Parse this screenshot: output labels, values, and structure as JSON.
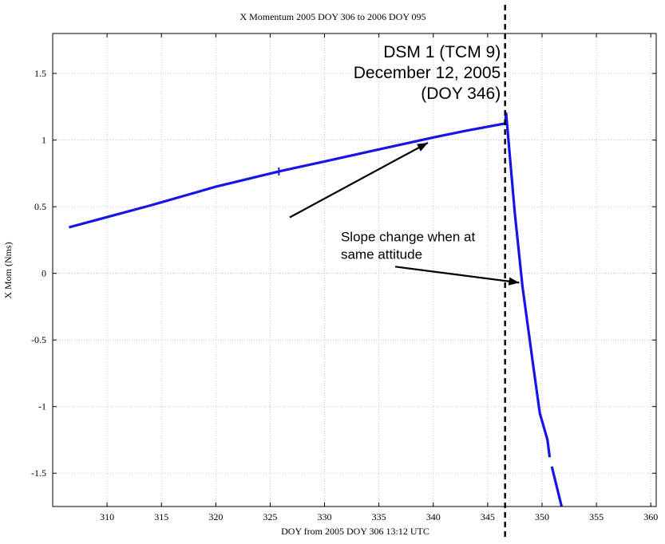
{
  "chart_data": {
    "type": "line",
    "title": "X Momentum 2005 DOY 306 to 2006 DOY 095",
    "xlabel": "DOY from 2005 DOY 306 13:12 UTC",
    "ylabel": "X Mom (Nms)",
    "xlim": [
      305,
      360.5
    ],
    "ylim": [
      -1.75,
      1.8
    ],
    "xticks": [
      310,
      315,
      320,
      325,
      330,
      335,
      340,
      345,
      350,
      355,
      360
    ],
    "yticks": [
      1.5,
      1,
      0.5,
      0,
      -0.5,
      -1,
      -1.5
    ],
    "ytick_labels": [
      "1.5",
      "1",
      "0.5",
      "0",
      "-0.5",
      "-1",
      "-1.5"
    ],
    "grid": true,
    "series": [
      {
        "color": "#1515e8",
        "segments": [
          [
            [
              306.5,
              0.345
            ],
            [
              314,
              0.51
            ],
            [
              320,
              0.65
            ],
            [
              325.8,
              0.765
            ],
            [
              330,
              0.84
            ],
            [
              335,
              0.93
            ],
            [
              340,
              1.02
            ],
            [
              343,
              1.07
            ],
            [
              346.6,
              1.125
            ],
            [
              346.7,
              1.2
            ],
            [
              347.5,
              0.45
            ],
            [
              348.2,
              -0.1
            ],
            [
              349.2,
              -0.7
            ],
            [
              349.8,
              -1.05
            ],
            [
              350.5,
              -1.25
            ],
            [
              350.7,
              -1.38
            ]
          ],
          [
            [
              350.9,
              -1.45
            ],
            [
              351.8,
              -1.75
            ]
          ]
        ]
      }
    ],
    "vline": {
      "x": 346.6,
      "style": "dashed",
      "color": "#000000"
    },
    "annotations": [
      {
        "lines": [
          "DSM 1 (TCM 9)",
          "December 12, 2005",
          "(DOY 346)"
        ],
        "anchor_x": 346.2,
        "anchor_y": 1.62,
        "align": "right"
      },
      {
        "lines": [
          "Slope change when at",
          "same attitude"
        ],
        "anchor_x": 331.5,
        "anchor_y": 0.24,
        "align": "left"
      }
    ],
    "arrows": [
      {
        "from": [
          326.8,
          0.42
        ],
        "to": [
          339.5,
          0.98
        ]
      },
      {
        "from": [
          336.5,
          0.05
        ],
        "to": [
          347.9,
          -0.07
        ]
      }
    ],
    "tick_marks": [
      {
        "x": 325.8,
        "y": 0.765
      }
    ]
  }
}
